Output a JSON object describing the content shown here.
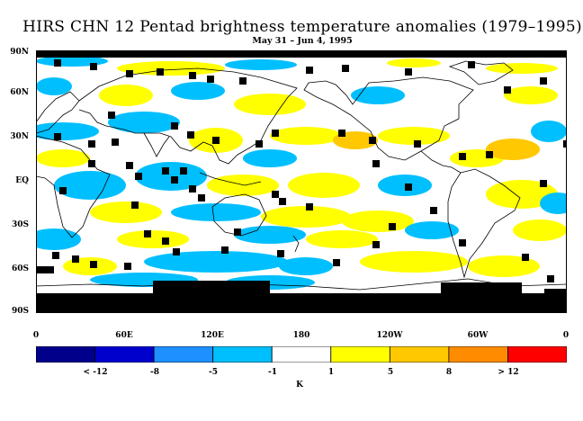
{
  "title": "HIRS CHN 12 Pentad brightness temperature anomalies (1979–1995)",
  "subtitle": "May 31 – Jun 4, 1995",
  "map": {
    "lat_labels": [
      "90N",
      "60N",
      "30N",
      "EQ",
      "30S",
      "60S",
      "90S"
    ],
    "lon_labels": [
      "0",
      "60E",
      "120E",
      "180",
      "120W",
      "60W",
      "0"
    ]
  },
  "colorbar": {
    "unit": "K",
    "colors": [
      "#00008b",
      "#0000cd",
      "#1e90ff",
      "#00bfff",
      "#ffffff",
      "#ffff00",
      "#ffc800",
      "#ff8c00",
      "#ff0000"
    ],
    "labels": [
      "< -12",
      "-8",
      "-5",
      "-1",
      "1",
      "5",
      "8",
      "> 12"
    ],
    "classes": [
      "< -12",
      "-12 to -8",
      "-8 to -5",
      "-5 to -1",
      "-1 to 1",
      "1 to 5",
      "5 to 8",
      "8 to 12",
      "> 12"
    ]
  },
  "colors": {
    "missing": "#000000",
    "coast": "#000000"
  }
}
